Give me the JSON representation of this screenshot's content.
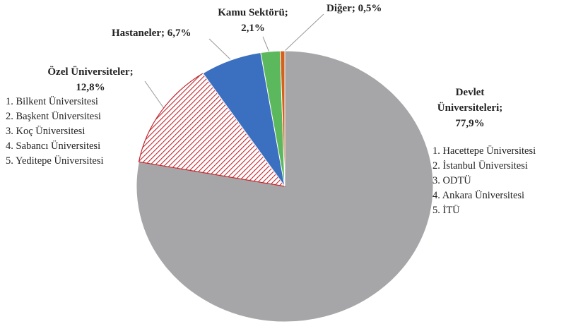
{
  "chart_data": {
    "type": "pie",
    "categories": [
      "Devlet Üniversiteleri",
      "Özel Üniversiteler",
      "Hastaneler",
      "Kamu Sektörü",
      "Diğer"
    ],
    "values": [
      77.9,
      12.8,
      6.7,
      2.1,
      0.5
    ],
    "value_labels": [
      "77,9%",
      "12,8%",
      "6,7%",
      "2,1%",
      "0,5%"
    ],
    "separator": ";",
    "colors": [
      "#a6a6a8",
      "#c0272d",
      "#3b6fc0",
      "#5cb85c",
      "#d4621c"
    ],
    "member_lists": [
      [
        "1. Hacettepe Üniversitesi",
        "2. İstanbul Üniversitesi",
        "3. ODTÜ",
        "4. Ankara Üniversitesi",
        "5. İTÜ"
      ],
      [
        "1. Bilkent Üniversitesi",
        "2. Başkent Üniversitesi",
        "3. Koç Üniversitesi",
        "4. Sabancı Üniversitesi",
        "5. Yeditepe Üniversitesi"
      ]
    ]
  }
}
